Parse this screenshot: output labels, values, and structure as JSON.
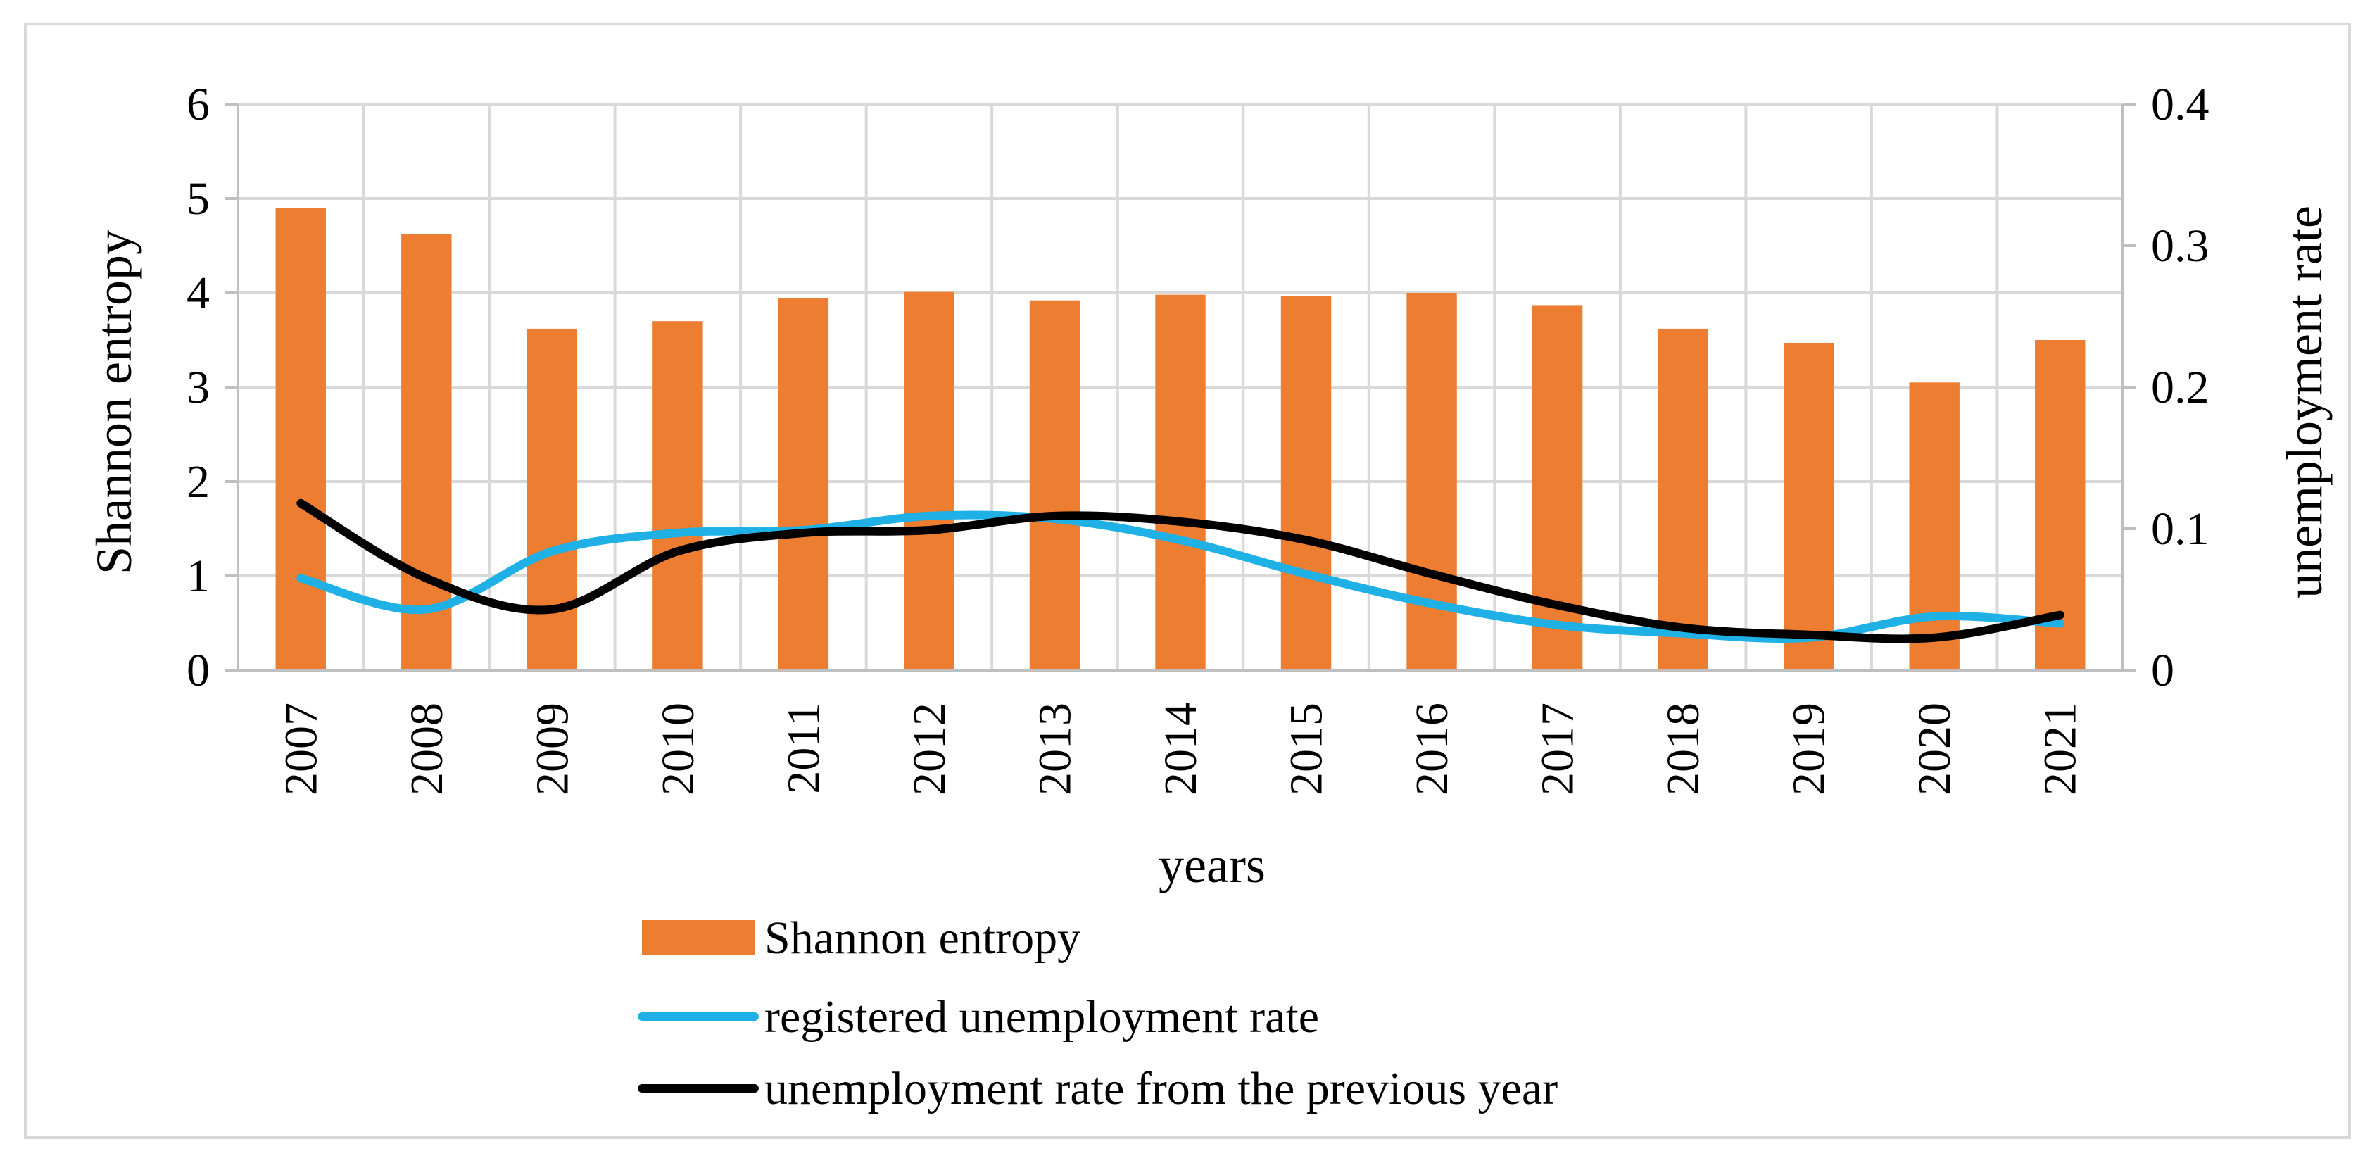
{
  "chart_data": {
    "type": "bar+line",
    "categories": [
      "2007",
      "2008",
      "2009",
      "2010",
      "2011",
      "2012",
      "2013",
      "2014",
      "2015",
      "2016",
      "2017",
      "2018",
      "2019",
      "2020",
      "2021"
    ],
    "xlabel": "years",
    "ylabel_left": "Shannon entropy",
    "ylabel_right": "unemployment rate",
    "ylim_left": [
      0,
      6
    ],
    "ylim_right": [
      0,
      0.4
    ],
    "yticks_left": [
      "0",
      "1",
      "2",
      "3",
      "4",
      "5",
      "6"
    ],
    "yticks_right": [
      "0",
      "0.1",
      "0.2",
      "0.3",
      "0.4"
    ],
    "grid": true,
    "legend_position": "bottom",
    "series": [
      {
        "name": "Shannon entropy",
        "type": "bar",
        "axis": "left",
        "color": "#ed7d31",
        "values": [
          4.9,
          4.62,
          3.62,
          3.7,
          3.94,
          4.01,
          3.92,
          3.98,
          3.97,
          4.0,
          3.87,
          3.62,
          3.47,
          3.05,
          3.5
        ]
      },
      {
        "name": "registered unemployment rate",
        "type": "line",
        "axis": "right",
        "color": "#1fb1e6",
        "values": [
          0.065,
          0.043,
          0.084,
          0.097,
          0.099,
          0.109,
          0.107,
          0.092,
          0.068,
          0.047,
          0.032,
          0.026,
          0.023,
          0.038,
          0.033
        ]
      },
      {
        "name": "unemployment rate from the previous year",
        "type": "line",
        "axis": "right",
        "color": "#000000",
        "values": [
          0.118,
          0.065,
          0.043,
          0.084,
          0.097,
          0.099,
          0.109,
          0.105,
          0.092,
          0.068,
          0.046,
          0.03,
          0.025,
          0.023,
          0.039
        ]
      }
    ]
  }
}
